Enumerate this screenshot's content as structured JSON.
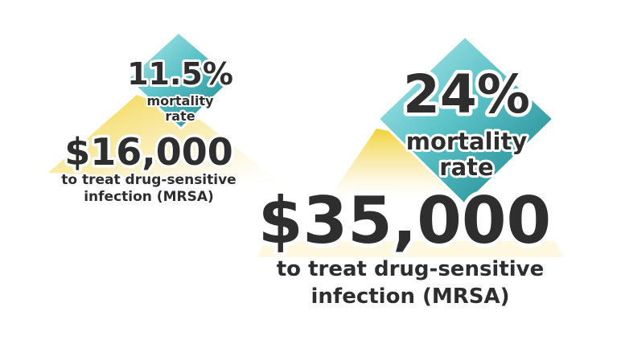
{
  "colors": {
    "text": "#2e2e2e",
    "outline": "#ffffff",
    "diamond_light": "#a7e3e6",
    "diamond_dark": "#1f8e96",
    "glow_yellow": "#f3d64a"
  },
  "left_panel": {
    "mortality_value": "11.5%",
    "mortality_label_line1": "mortality",
    "mortality_label_line2": "rate",
    "cost_value": "$16,000",
    "cost_label_line1": "to treat drug-sensitive",
    "cost_label_line2": "infection (MRSA)"
  },
  "right_panel": {
    "mortality_value": "24%",
    "mortality_label_line1": "mortality",
    "mortality_label_line2": "rate",
    "cost_value": "$35,000",
    "cost_label_line1": "to treat drug-sensitive",
    "cost_label_line2": "infection (MRSA)"
  }
}
